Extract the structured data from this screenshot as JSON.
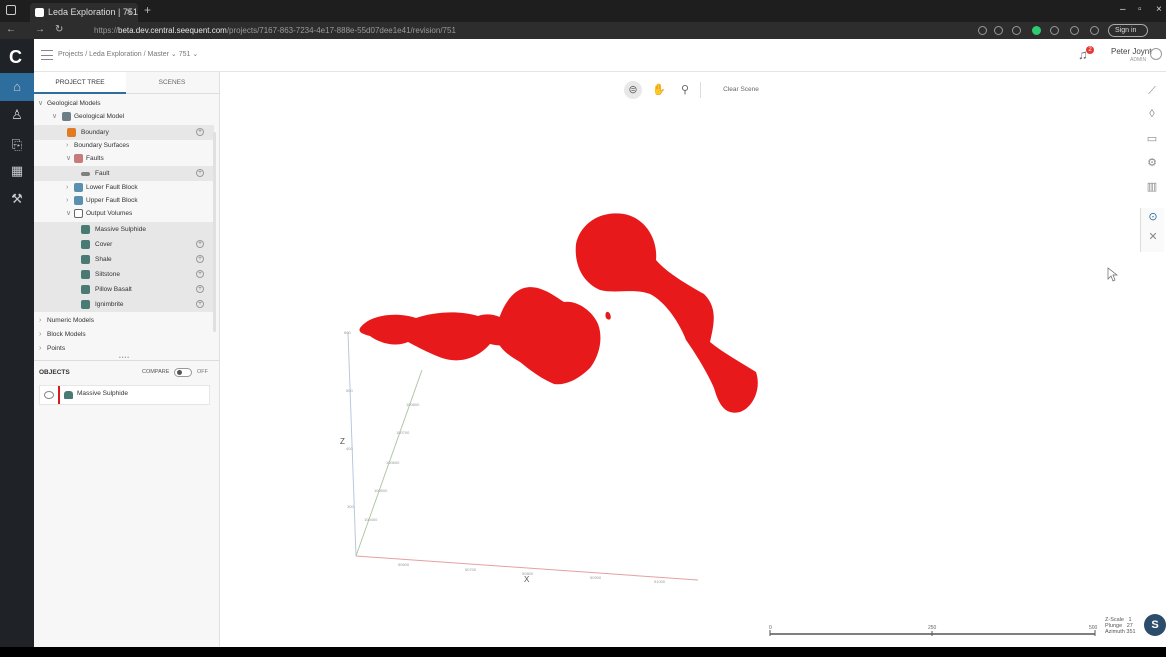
{
  "browser": {
    "tab_title": "Leda Exploration | 751",
    "url_prefix": "https://",
    "url_host": "beta.dev.central.seequent.com",
    "url_path": "/projects/7167-863-7234-4e17-888e-55d07dee1e41/revision/751",
    "signin_label": "Sign in"
  },
  "header": {
    "crumb_projects": "Projects",
    "crumb_project": "Leda Exploration",
    "crumb_branch": "Master",
    "crumb_revision": "751",
    "user_name": "Peter Joynt",
    "user_role": "ADMIN",
    "notif_count": "2"
  },
  "panel": {
    "tab_tree": "PROJECT TREE",
    "tab_scenes": "SCENES",
    "tree": [
      {
        "label": "Geological Models"
      },
      {
        "label": "Geological Model"
      },
      {
        "label": "Boundary"
      },
      {
        "label": "Boundary Surfaces"
      },
      {
        "label": "Faults"
      },
      {
        "label": "Fault"
      },
      {
        "label": "Lower Fault Block"
      },
      {
        "label": "Upper Fault Block"
      },
      {
        "label": "Output Volumes"
      },
      {
        "label": "Massive Sulphide"
      },
      {
        "label": "Cover"
      },
      {
        "label": "Shale"
      },
      {
        "label": "Siltstone"
      },
      {
        "label": "Pillow Basalt"
      },
      {
        "label": "Ignimbrite"
      },
      {
        "label": "Numeric Models"
      },
      {
        "label": "Block Models"
      },
      {
        "label": "Points"
      }
    ],
    "objects_title": "OBJECTS",
    "compare_label": "COMPARE",
    "compare_state": "OFF",
    "objects": [
      {
        "label": "Massive Sulphide"
      }
    ]
  },
  "viewport": {
    "clear_scene": "Clear Scene",
    "axis_x": "X",
    "axis_z": "Z",
    "scale_0": "0",
    "scale_mid": "250",
    "scale_end": "500",
    "zscale_label": "Z-Scale",
    "zscale_value": "1",
    "plunge_label": "Plunge",
    "plunge_value": "27",
    "azimuth_label": "Azimuth",
    "azimuth_value": "351",
    "s_button": "S",
    "body_color": "#e8191b"
  }
}
